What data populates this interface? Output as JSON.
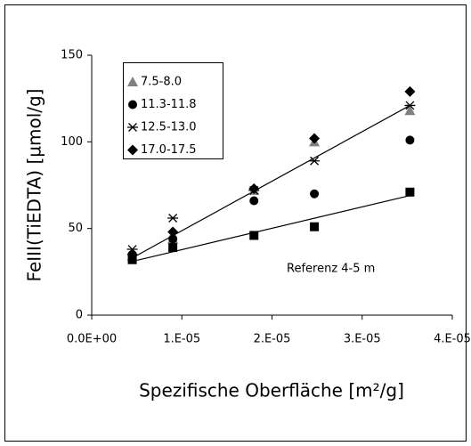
{
  "chart_data": {
    "type": "scatter",
    "x_label": "Spezifische Oberfläche [m²/g]",
    "y_label": "FeIII(TiEDTA) [µmol/g]",
    "x": [
      4.5e-06,
      9e-06,
      1.8e-05,
      2.47e-05,
      3.53e-05
    ],
    "series": [
      {
        "name": "7.5-8.0",
        "color": "#808080",
        "marker": "triangle",
        "values": [
          34,
          44,
          72,
          100,
          118
        ]
      },
      {
        "name": "11.3-11.8",
        "color": "#000000",
        "marker": "circle",
        "values": [
          35,
          44,
          66,
          70,
          101
        ]
      },
      {
        "name": "12.5-13.0",
        "color": "#000000",
        "marker": "asterisk",
        "values": [
          38,
          56,
          72,
          89,
          121
        ]
      },
      {
        "name": "17.0-17.5",
        "color": "#000000",
        "marker": "diamond",
        "values": [
          35,
          48,
          73,
          102,
          129
        ]
      },
      {
        "name": "Referenz 4-5 m",
        "color": "#000000",
        "marker": "square",
        "legend": false,
        "values": [
          32,
          39,
          46,
          51,
          71
        ]
      }
    ],
    "trendlines": [
      {
        "x": [
          4.5e-06,
          3.53e-05
        ],
        "values": [
          33,
          121
        ]
      },
      {
        "x": [
          4.5e-06,
          3.53e-05
        ],
        "values": [
          31,
          69
        ]
      }
    ],
    "xlim": [
      0,
      4e-05
    ],
    "xticks": [
      {
        "value": 0,
        "label": "0.0E+00"
      },
      {
        "value": 1e-05,
        "label": "1.E-05"
      },
      {
        "value": 2e-05,
        "label": "2.E-05"
      },
      {
        "value": 3e-05,
        "label": "3.E-05"
      },
      {
        "value": 4e-05,
        "label": "4.E-05"
      }
    ],
    "ylim": [
      0,
      150
    ],
    "yticks": [
      0,
      50,
      100,
      150
    ],
    "grid": false
  }
}
